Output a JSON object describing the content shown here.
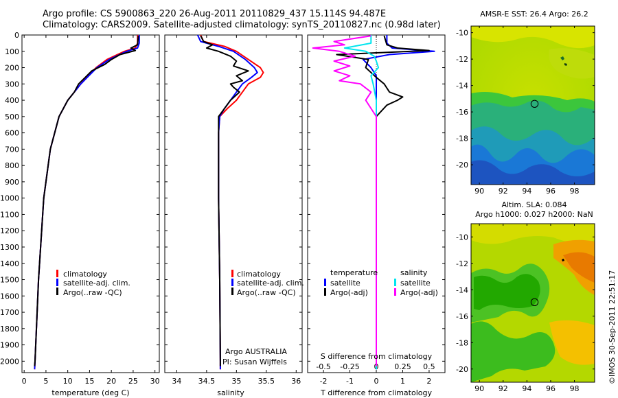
{
  "header": {
    "line1": "Argo profile: CS 5900863_220 26-Aug-2011 20110829_437 15.114S 94.487E",
    "line2": "Climatology: CARS2009. Satellite-adjusted climatology: synTS_20110827.nc (0.98d later)"
  },
  "map_titles": {
    "top": "AMSR-E SST: 26.4 Argo: 26.2",
    "bottom_line1": "Altim. SLA: 0.084",
    "bottom_line2": "Argo h1000: 0.027 h2000: NaN"
  },
  "credit": "©IMOS 30-Sep-2011 22:51:17",
  "colors": {
    "climatology": "#ff0000",
    "satellite": "#0000ff",
    "argo": "#000000",
    "sat_salinity": "#00e5ee",
    "argo_salinity": "#ff00ff"
  },
  "chart_data": [
    {
      "type": "line",
      "xlabel": "temperature (deg C)",
      "ylabel": "",
      "xlim": [
        -0.5,
        31
      ],
      "ylim": [
        2070,
        0
      ],
      "xticks": [
        0,
        5,
        10,
        15,
        20,
        25,
        30
      ],
      "yticks": [
        0,
        100,
        200,
        300,
        400,
        500,
        600,
        700,
        800,
        900,
        1000,
        1100,
        1200,
        1300,
        1400,
        1500,
        1600,
        1700,
        1800,
        1900,
        2000
      ],
      "legend": [
        "climatology",
        "satellite-adj. clim.",
        "Argo(..raw -QC)"
      ],
      "series": [
        {
          "name": "climatology",
          "color": "#ff0000",
          "depth": [
            0,
            50,
            80,
            100,
            150,
            200,
            300,
            400,
            500,
            700,
            1000,
            1500,
            2000,
            2050
          ],
          "values": [
            26.0,
            26.0,
            25.5,
            23.0,
            19.0,
            16.5,
            13.0,
            10.0,
            8.0,
            6.0,
            4.5,
            3.3,
            2.5,
            2.4
          ]
        },
        {
          "name": "satellite-adj. clim.",
          "color": "#0000ff",
          "depth": [
            0,
            50,
            80,
            100,
            150,
            200,
            300,
            400,
            500,
            700,
            1000,
            1500,
            2000,
            2050
          ],
          "values": [
            26.4,
            26.4,
            26.0,
            23.5,
            19.5,
            16.7,
            13.0,
            10.0,
            8.0,
            6.0,
            4.5,
            3.3,
            2.5,
            2.4
          ]
        },
        {
          "name": "Argo(..raw -QC)",
          "color": "#000000",
          "depth": [
            5,
            60,
            80,
            95,
            120,
            150,
            180,
            220,
            260,
            300,
            350,
            400,
            500,
            700,
            1000,
            1500,
            2000,
            2030
          ],
          "values": [
            26.2,
            26.0,
            24.5,
            25.5,
            22.0,
            20.0,
            18.5,
            15.5,
            14.0,
            12.5,
            11.5,
            10.0,
            8.0,
            6.0,
            4.5,
            3.3,
            2.5,
            2.4
          ]
        }
      ]
    },
    {
      "type": "line",
      "xlabel": "salinity",
      "ylabel": "",
      "xlim": [
        33.8,
        36.1
      ],
      "ylim": [
        2070,
        0
      ],
      "xticks": [
        34,
        34.5,
        35,
        35.5,
        36
      ],
      "xticklabels": [
        "34",
        "34.5",
        "35",
        "35.5",
        "36"
      ],
      "legend": [
        "climatology",
        "satellite-adj. clim.",
        "Argo(..raw -QC)"
      ],
      "annotation_line1": "Argo AUSTRALIA",
      "annotation_line2": "PI: Susan Wijffels",
      "series": [
        {
          "name": "climatology",
          "color": "#ff0000",
          "depth": [
            0,
            40,
            70,
            100,
            150,
            200,
            230,
            260,
            300,
            350,
            400,
            450,
            500,
            600,
            700,
            1000,
            1500,
            2000,
            2050
          ],
          "values": [
            34.4,
            34.45,
            34.8,
            35.0,
            35.2,
            35.4,
            35.45,
            35.4,
            35.2,
            35.1,
            35.0,
            34.85,
            34.72,
            34.7,
            34.7,
            34.7,
            34.72,
            34.73,
            34.73
          ]
        },
        {
          "name": "satellite-adj. clim.",
          "color": "#0000ff",
          "depth": [
            0,
            40,
            70,
            100,
            150,
            200,
            230,
            260,
            300,
            350,
            400,
            450,
            500,
            600,
            700,
            1000,
            1500,
            2000,
            2050
          ],
          "values": [
            34.35,
            34.4,
            34.7,
            34.95,
            35.15,
            35.3,
            35.35,
            35.25,
            35.1,
            35.0,
            34.9,
            34.8,
            34.72,
            34.7,
            34.7,
            34.7,
            34.72,
            34.73,
            34.73
          ]
        },
        {
          "name": "Argo(..raw -QC)",
          "color": "#000000",
          "depth": [
            5,
            40,
            60,
            80,
            100,
            130,
            160,
            190,
            220,
            250,
            280,
            300,
            320,
            350,
            400,
            450,
            500,
            600,
            700,
            1000,
            1500,
            2000,
            2030
          ],
          "values": [
            34.4,
            34.45,
            34.6,
            34.5,
            34.7,
            34.9,
            35.0,
            34.95,
            35.2,
            35.0,
            35.1,
            34.9,
            34.95,
            35.05,
            34.9,
            34.8,
            34.7,
            34.7,
            34.7,
            34.7,
            34.72,
            34.73,
            34.73
          ]
        }
      ]
    },
    {
      "type": "line",
      "xlabel": "T difference from climatology",
      "xlabel_top": "S difference from climatology",
      "xlim": [
        -2.6,
        2.6
      ],
      "ylim": [
        2070,
        0
      ],
      "xticks": [
        -2,
        -1,
        0,
        1,
        2
      ],
      "xticks_top": [
        -0.5,
        -0.25,
        0,
        0.25,
        0.5
      ],
      "xticklabels_top": [
        "-0.5",
        "-0.25",
        "0",
        "0.25",
        "0.5"
      ],
      "legend_temperature_title": "temperature",
      "legend_salinity_title": "salinity",
      "legend_sat_label": "satellite",
      "legend_argo_label": "Argo(-adj)",
      "series": [
        {
          "name": "temperature satellite",
          "color": "#0000ff",
          "depth": [
            0,
            50,
            80,
            100,
            120,
            150,
            200,
            250,
            300,
            350,
            400,
            500,
            700,
            1000,
            1500,
            2000,
            2050
          ],
          "values": [
            0.4,
            0.4,
            0.6,
            2.2,
            0.5,
            -0.5,
            -0.2,
            0.0,
            0.0,
            0.0,
            0.0,
            0.0,
            0.0,
            0.0,
            0.0,
            0.0,
            0.0
          ]
        },
        {
          "name": "temperature Argo(-adj)",
          "color": "#000000",
          "depth": [
            5,
            60,
            80,
            95,
            120,
            150,
            200,
            260,
            300,
            350,
            380,
            400,
            430,
            500,
            700,
            1000,
            1500,
            2000
          ],
          "values": [
            0.3,
            0.4,
            0.8,
            2.0,
            -1.5,
            -0.3,
            -0.4,
            0.0,
            0.3,
            0.5,
            1.0,
            0.8,
            0.4,
            0.0,
            0.0,
            0.0,
            0.0,
            0.0
          ]
        },
        {
          "name": "salinity satellite",
          "color": "#00e5ee",
          "depth": [
            0,
            50,
            80,
            100,
            130,
            160,
            200,
            250,
            300,
            400,
            500,
            700,
            1000,
            1500,
            2000,
            2050
          ],
          "values": [
            -0.05,
            -0.05,
            -0.3,
            -0.1,
            -0.02,
            0.0,
            0.02,
            -0.05,
            -0.03,
            0.0,
            0.0,
            0.0,
            0.0,
            0.0,
            0.0,
            0.0
          ]
        },
        {
          "name": "salinity Argo(-adj)",
          "color": "#ff00ff",
          "depth": [
            5,
            40,
            60,
            80,
            100,
            130,
            160,
            190,
            220,
            250,
            280,
            300,
            350,
            400,
            450,
            500,
            700,
            1000,
            1500,
            2000,
            2030
          ],
          "values": [
            -0.05,
            -0.4,
            -0.3,
            -0.6,
            -0.35,
            -0.2,
            -0.4,
            -0.25,
            -0.4,
            -0.25,
            -0.35,
            -0.15,
            -0.05,
            -0.1,
            -0.05,
            0.0,
            0.0,
            0.0,
            0.0,
            0.0,
            0.0
          ]
        }
      ]
    },
    {
      "type": "heatmap",
      "title": "AMSR-E SST: 26.4 Argo: 26.2",
      "xlim": [
        89.3,
        99.7
      ],
      "ylim": [
        -21.5,
        -9.5
      ],
      "xticks": [
        90,
        92,
        94,
        96,
        98
      ],
      "yticks": [
        -10,
        -12,
        -14,
        -16,
        -18,
        -20
      ],
      "profile_location": {
        "lon": 94.487,
        "lat": -15.114
      }
    },
    {
      "type": "heatmap",
      "title": "Altim. SLA: 0.084",
      "subtitle": "Argo h1000: 0.027 h2000: NaN",
      "xlim": [
        89.3,
        99.7
      ],
      "ylim": [
        -21.0,
        -9.0
      ],
      "xticks": [
        90,
        92,
        94,
        96,
        98
      ],
      "yticks": [
        -10,
        -12,
        -14,
        -16,
        -18,
        -20
      ],
      "profile_location": {
        "lon": 94.487,
        "lat": -15.114
      }
    }
  ]
}
